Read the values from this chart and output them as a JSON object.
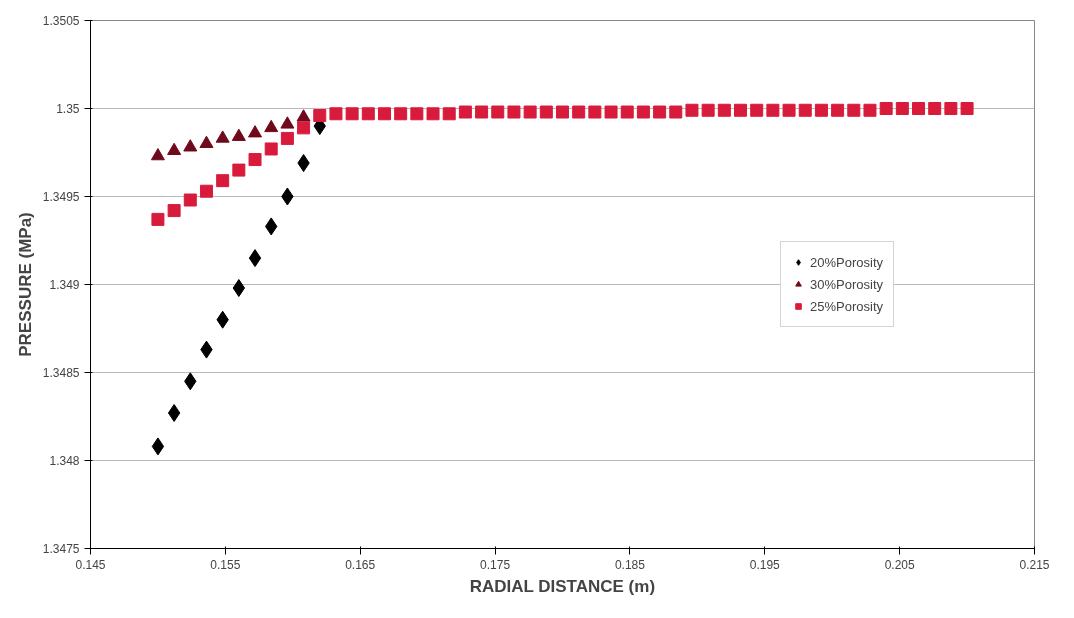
{
  "chart_data": {
    "type": "scatter",
    "xlabel": "RADIAL DISTANCE (m)",
    "ylabel": "PRESSURE (MPa)",
    "x": [
      0.15,
      0.1512,
      0.1524,
      0.1536,
      0.1548,
      0.156,
      0.1572,
      0.1584,
      0.1596,
      0.1608,
      0.162,
      0.1632,
      0.1644,
      0.1656,
      0.1668,
      0.168,
      0.1692,
      0.1704,
      0.1716,
      0.1728,
      0.174,
      0.1752,
      0.1764,
      0.1776,
      0.1788,
      0.18,
      0.1812,
      0.1824,
      0.1836,
      0.1848,
      0.186,
      0.1872,
      0.1884,
      0.1896,
      0.1908,
      0.192,
      0.1932,
      0.1944,
      0.1956,
      0.1968,
      0.198,
      0.1992,
      0.2004,
      0.2016,
      0.2028,
      0.204,
      0.2052,
      0.2064,
      0.2076,
      0.2088,
      0.21
    ],
    "series": [
      {
        "name": "20%Porosity",
        "color": "#000000",
        "marker": "diamond",
        "values": [
          1.34808,
          1.34827,
          1.34845,
          1.34863,
          1.3488,
          1.34898,
          1.34915,
          1.34933,
          1.3495,
          1.34969,
          1.3499,
          null,
          null,
          null,
          null,
          null,
          null,
          null,
          null,
          null,
          null,
          null,
          null,
          null,
          null,
          null,
          null,
          null,
          null,
          null,
          null,
          null,
          null,
          null,
          null,
          null,
          null,
          null,
          null,
          null,
          null,
          null,
          null,
          null,
          null,
          null,
          null,
          null,
          null,
          null,
          null
        ]
      },
      {
        "name": "30%Porosity",
        "color": "#6e0a1c",
        "marker": "triangle",
        "values": [
          1.34973,
          1.34976,
          1.34978,
          1.3498,
          1.34983,
          1.34984,
          1.34986,
          1.34989,
          1.34991,
          1.34995,
          null,
          null,
          null,
          null,
          null,
          null,
          null,
          null,
          null,
          null,
          null,
          null,
          null,
          null,
          null,
          null,
          null,
          null,
          null,
          null,
          null,
          null,
          null,
          null,
          null,
          null,
          null,
          null,
          null,
          null,
          null,
          null,
          null,
          null,
          null,
          null,
          null,
          null,
          null,
          null,
          null
        ]
      },
      {
        "name": "25%Porosity",
        "color": "#d81b3c",
        "marker": "square",
        "values": [
          1.34937,
          1.34942,
          1.34948,
          1.34953,
          1.34959,
          1.34965,
          1.34971,
          1.34977,
          1.34983,
          1.34989,
          1.34996,
          1.34997,
          1.34997,
          1.34997,
          1.34997,
          1.34997,
          1.34997,
          1.34997,
          1.34997,
          1.34998,
          1.34998,
          1.34998,
          1.34998,
          1.34998,
          1.34998,
          1.34998,
          1.34998,
          1.34998,
          1.34998,
          1.34998,
          1.34998,
          1.34998,
          1.34998,
          1.34999,
          1.34999,
          1.34999,
          1.34999,
          1.34999,
          1.34999,
          1.34999,
          1.34999,
          1.34999,
          1.34999,
          1.34999,
          1.34999,
          1.35,
          1.35,
          1.35,
          1.35,
          1.35,
          1.35
        ]
      }
    ],
    "xlim": [
      0.145,
      0.215
    ],
    "xticks": [
      0.145,
      0.155,
      0.165,
      0.175,
      0.185,
      0.195,
      0.205,
      0.215
    ],
    "ylim": [
      1.3475,
      1.3505
    ],
    "yticks": [
      1.3475,
      1.348,
      1.3485,
      1.349,
      1.3495,
      1.35,
      1.3505
    ],
    "grid": "y",
    "legend": "right"
  }
}
